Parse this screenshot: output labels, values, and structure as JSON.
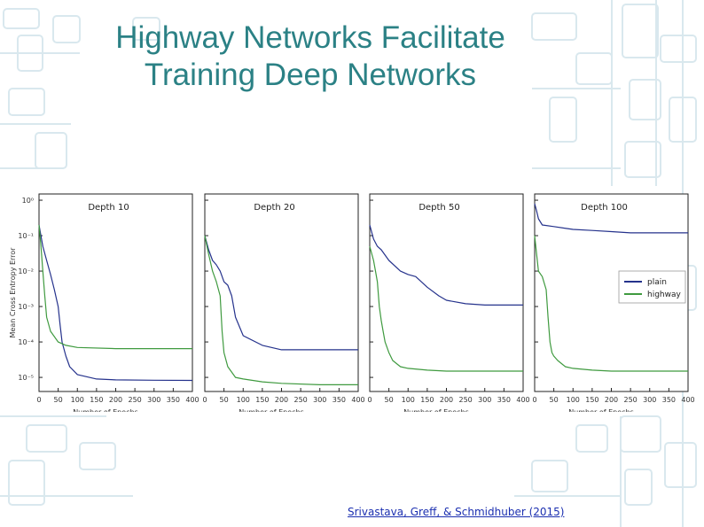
{
  "slide": {
    "title_line1": "Highway Networks Facilitate",
    "title_line2": "Training Deep Networks",
    "citation": "Srivastava, Greff, & Schmidhuber (2015)"
  },
  "colors": {
    "title": "#2b8185",
    "plain": "#25328c",
    "highway": "#3f9a3f",
    "citation": "#1b2fb0",
    "pattern": "#d9e8ee"
  },
  "chart_data": {
    "type": "line",
    "shared": {
      "xlabel": "Number of Epochs",
      "ylabel": "Mean Cross Entropy Error",
      "x_ticks": [
        "0",
        "50",
        "100",
        "150",
        "200",
        "250",
        "300",
        "350",
        "400"
      ],
      "y_ticks": [
        "10⁰",
        "10⁻¹",
        "10⁻²",
        "10⁻³",
        "10⁻⁴",
        "10⁻⁵"
      ],
      "xlim": [
        0,
        400
      ],
      "ylim": [
        4e-06,
        1.5
      ],
      "yscale": "log",
      "legend": {
        "position": "right",
        "panel": 3,
        "entries": [
          "plain",
          "highway"
        ]
      }
    },
    "panels": [
      {
        "title": "Depth 10",
        "series": [
          {
            "name": "plain",
            "x": [
              0,
              10,
              20,
              30,
              40,
              50,
              55,
              60,
              70,
              80,
              100,
              150,
              200,
              300,
              400
            ],
            "y": [
              0.2,
              0.05,
              0.02,
              0.008,
              0.003,
              0.001,
              0.0003,
              0.0001,
              4e-05,
              2e-05,
              1.2e-05,
              9e-06,
              8.5e-06,
              8.3e-06,
              8.2e-06
            ]
          },
          {
            "name": "highway",
            "x": [
              0,
              5,
              10,
              15,
              20,
              30,
              50,
              70,
              100,
              200,
              300,
              400
            ],
            "y": [
              0.2,
              0.05,
              0.01,
              0.002,
              0.0005,
              0.0002,
              0.0001,
              8e-05,
              7e-05,
              6.5e-05,
              6.5e-05,
              6.5e-05
            ]
          }
        ]
      },
      {
        "title": "Depth 20",
        "series": [
          {
            "name": "plain",
            "x": [
              0,
              10,
              20,
              30,
              40,
              50,
              60,
              70,
              80,
              100,
              150,
              200,
              300,
              400
            ],
            "y": [
              0.1,
              0.04,
              0.02,
              0.015,
              0.01,
              0.005,
              0.004,
              0.002,
              0.0005,
              0.00015,
              8e-05,
              6e-05,
              6e-05,
              6e-05
            ]
          },
          {
            "name": "highway",
            "x": [
              0,
              10,
              20,
              30,
              40,
              45,
              50,
              60,
              80,
              100,
              150,
              200,
              300,
              400
            ],
            "y": [
              0.1,
              0.03,
              0.01,
              0.005,
              0.002,
              0.0002,
              5e-05,
              2e-05,
              1e-05,
              9e-06,
              7.5e-06,
              6.8e-06,
              6.2e-06,
              6.2e-06
            ]
          }
        ]
      },
      {
        "title": "Depth 50",
        "series": [
          {
            "name": "plain",
            "x": [
              0,
              10,
              20,
              30,
              50,
              80,
              100,
              120,
              150,
              180,
              200,
              250,
              300,
              400
            ],
            "y": [
              0.2,
              0.08,
              0.05,
              0.04,
              0.02,
              0.01,
              0.008,
              0.007,
              0.0035,
              0.002,
              0.0015,
              0.0012,
              0.0011,
              0.0011
            ]
          },
          {
            "name": "highway",
            "x": [
              0,
              10,
              15,
              20,
              25,
              30,
              35,
              40,
              50,
              60,
              80,
              100,
              150,
              200,
              300,
              400
            ],
            "y": [
              0.05,
              0.02,
              0.01,
              0.005,
              0.001,
              0.0004,
              0.0002,
              0.0001,
              5e-05,
              3e-05,
              2e-05,
              1.8e-05,
              1.6e-05,
              1.5e-05,
              1.5e-05,
              1.5e-05
            ]
          }
        ]
      },
      {
        "title": "Depth 100",
        "series": [
          {
            "name": "plain",
            "x": [
              0,
              5,
              10,
              20,
              50,
              100,
              150,
              200,
              250,
              300,
              350,
              400
            ],
            "y": [
              0.8,
              0.5,
              0.3,
              0.2,
              0.18,
              0.15,
              0.14,
              0.13,
              0.12,
              0.12,
              0.12,
              0.12
            ]
          },
          {
            "name": "highway",
            "x": [
              0,
              5,
              10,
              20,
              30,
              35,
              40,
              45,
              50,
              60,
              80,
              100,
              150,
              200,
              300,
              400
            ],
            "y": [
              0.1,
              0.03,
              0.01,
              0.007,
              0.003,
              0.0005,
              0.0001,
              5e-05,
              4e-05,
              3e-05,
              2e-05,
              1.8e-05,
              1.6e-05,
              1.5e-05,
              1.5e-05,
              1.5e-05
            ]
          }
        ]
      }
    ]
  }
}
